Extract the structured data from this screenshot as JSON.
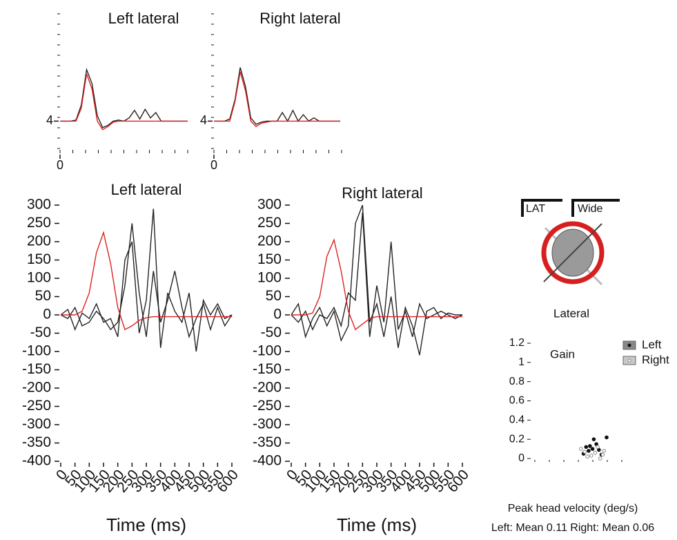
{
  "chart_data": [
    {
      "type": "line",
      "title": "Left lateral",
      "x": [
        0,
        25,
        50,
        75,
        100,
        125,
        150,
        175,
        200,
        225,
        250,
        275,
        300,
        325,
        350,
        375,
        400,
        425,
        450,
        475,
        500,
        525,
        550,
        575,
        600
      ],
      "xlim": [
        0,
        600
      ],
      "xticks": [
        0
      ],
      "ylim": [
        1,
        14
      ],
      "yticks": [
        4
      ],
      "series": [
        {
          "color": "#222222",
          "values": [
            4,
            4,
            4,
            4.1,
            5.5,
            8.8,
            7.5,
            4.5,
            3.4,
            3.6,
            4,
            4.1,
            4,
            4.3,
            5,
            4.2,
            5.1,
            4.3,
            4.8,
            4,
            4,
            4,
            4,
            4,
            4
          ]
        },
        {
          "color": "#e02020",
          "values": [
            4,
            4,
            4,
            4,
            5.2,
            8.4,
            7,
            4,
            3.2,
            3.5,
            3.9,
            4,
            4,
            4,
            4,
            4,
            4,
            4,
            4,
            4,
            4,
            4,
            4,
            4,
            4
          ]
        }
      ]
    },
    {
      "type": "line",
      "title": "Right lateral",
      "x": [
        0,
        25,
        50,
        75,
        100,
        125,
        150,
        175,
        200,
        225,
        250,
        275,
        300,
        325,
        350,
        375,
        400,
        425,
        450,
        475,
        500,
        525,
        550,
        575,
        600
      ],
      "xlim": [
        0,
        600
      ],
      "xticks": [
        0
      ],
      "ylim": [
        1,
        14
      ],
      "yticks": [
        4
      ],
      "series": [
        {
          "color": "#222222",
          "values": [
            4,
            4,
            4,
            4.2,
            6,
            9,
            7.2,
            4.3,
            3.7,
            3.9,
            4,
            4,
            4,
            4.8,
            4,
            5,
            4,
            4.6,
            4,
            4.3,
            4,
            4,
            4,
            4,
            4
          ]
        },
        {
          "color": "#e02020",
          "values": [
            4,
            4,
            4,
            4,
            5.8,
            8.6,
            6.8,
            4,
            3.5,
            3.8,
            3.9,
            4,
            4,
            4,
            4,
            4,
            4,
            4,
            4,
            4,
            4,
            4,
            4,
            4,
            4
          ]
        }
      ]
    },
    {
      "type": "line",
      "title": "Left lateral",
      "x_label": "Time (ms)",
      "x": [
        0,
        25,
        50,
        75,
        100,
        125,
        150,
        175,
        200,
        225,
        250,
        275,
        300,
        325,
        350,
        375,
        400,
        425,
        450,
        475,
        500,
        525,
        550,
        575,
        600
      ],
      "xlim": [
        0,
        600
      ],
      "xticks": [
        0,
        50,
        100,
        150,
        200,
        250,
        300,
        350,
        400,
        450,
        500,
        550,
        600
      ],
      "ylim": [
        -400,
        300
      ],
      "yticks": [
        300,
        250,
        200,
        150,
        100,
        50,
        0,
        -50,
        -100,
        -150,
        -200,
        -250,
        -300,
        -350,
        -400
      ],
      "series": [
        {
          "color": "#222222",
          "values": [
            0,
            -10,
            20,
            -30,
            -20,
            10,
            -10,
            -40,
            -20,
            80,
            250,
            60,
            -60,
            120,
            -20,
            40,
            120,
            20,
            -60,
            -10,
            30,
            -40,
            20,
            -30,
            0
          ]
        },
        {
          "color": "#222222",
          "values": [
            0,
            15,
            -40,
            5,
            -10,
            30,
            -20,
            -10,
            -60,
            150,
            200,
            -50,
            40,
            290,
            -90,
            60,
            10,
            -20,
            60,
            -100,
            40,
            0,
            30,
            -10,
            0
          ]
        },
        {
          "color": "#e02020",
          "values": [
            0,
            0,
            0,
            10,
            60,
            170,
            225,
            140,
            20,
            -40,
            -30,
            -15,
            -8,
            -5,
            -5,
            -5,
            -5,
            -5,
            -5,
            -5,
            -5,
            -5,
            -5,
            -5,
            -5
          ]
        }
      ]
    },
    {
      "type": "line",
      "title": "Right lateral",
      "x_label": "Time (ms)",
      "x": [
        0,
        25,
        50,
        75,
        100,
        125,
        150,
        175,
        200,
        225,
        250,
        275,
        300,
        325,
        350,
        375,
        400,
        425,
        450,
        475,
        500,
        525,
        550,
        575,
        600
      ],
      "xlim": [
        0,
        600
      ],
      "xticks": [
        0,
        50,
        100,
        150,
        200,
        250,
        300,
        350,
        400,
        450,
        500,
        550,
        600
      ],
      "ylim": [
        -400,
        300
      ],
      "yticks": [
        300,
        250,
        200,
        150,
        100,
        50,
        0,
        -50,
        -100,
        -150,
        -200,
        -250,
        -300,
        -350,
        -400
      ],
      "series": [
        {
          "color": "#222222",
          "values": [
            0,
            -20,
            10,
            -40,
            0,
            -10,
            20,
            -30,
            60,
            40,
            280,
            -60,
            80,
            -20,
            200,
            -40,
            10,
            -60,
            30,
            -10,
            0,
            10,
            0,
            -10,
            0
          ]
        },
        {
          "color": "#222222",
          "values": [
            0,
            30,
            -60,
            -10,
            20,
            -30,
            10,
            -70,
            -30,
            250,
            300,
            -20,
            30,
            -60,
            50,
            -90,
            20,
            -30,
            -110,
            10,
            20,
            -10,
            5,
            0,
            0
          ]
        },
        {
          "color": "#e02020",
          "values": [
            0,
            0,
            0,
            5,
            50,
            160,
            205,
            120,
            10,
            -40,
            -25,
            -10,
            -5,
            -5,
            -5,
            -5,
            -5,
            -5,
            -5,
            -5,
            -5,
            -5,
            -5,
            -5,
            -5
          ]
        }
      ]
    },
    {
      "type": "scatter",
      "title": "Gain",
      "x_label": "Peak head velocity (deg/s)",
      "annotation": "Left: Mean 0.11  Right: Mean 0.06",
      "xlim": [
        0,
        350
      ],
      "ylim": [
        0,
        1.2
      ],
      "yticks": [
        0,
        0.2,
        0.4,
        0.6,
        0.8,
        1,
        1.2
      ],
      "series": [
        {
          "name": "Left",
          "color": "#111111",
          "x": [
            200,
            210,
            225,
            240,
            190,
            260,
            230,
            280,
            215,
            250
          ],
          "values": [
            0.12,
            0.08,
            0.1,
            0.15,
            0.05,
            0.04,
            0.2,
            0.22,
            0.13,
            0.09
          ]
        },
        {
          "name": "Right",
          "color": "#888888",
          "x": [
            180,
            205,
            235,
            255,
            270,
            220,
            245,
            195,
            265
          ],
          "values": [
            0.1,
            0.02,
            0.06,
            0.0,
            0.08,
            0.03,
            0.12,
            0.07,
            0.04
          ]
        }
      ]
    }
  ],
  "diagram": {
    "labels": [
      "LAT",
      "Wide"
    ],
    "caption": "Lateral"
  }
}
